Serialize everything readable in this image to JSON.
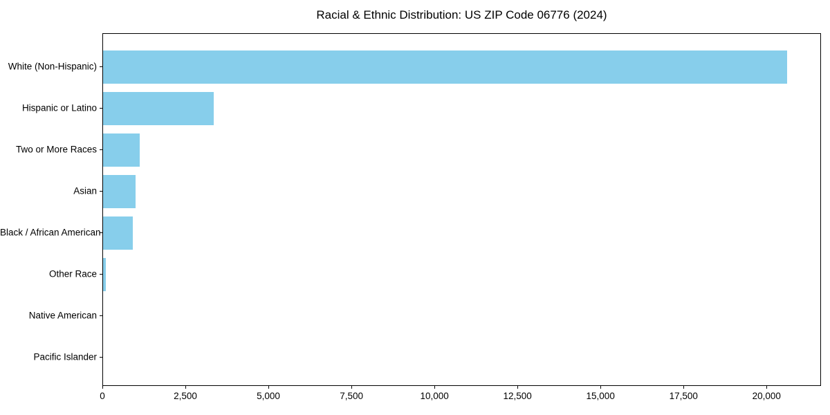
{
  "chart_data": {
    "type": "bar",
    "orientation": "horizontal",
    "title": "Racial & Ethnic Distribution: US ZIP Code 06776 (2024)",
    "categories": [
      "White (Non-Hispanic)",
      "Hispanic or Latino",
      "Two or More Races",
      "Asian",
      "Black / African American",
      "Other Race",
      "Native American",
      "Pacific Islander"
    ],
    "values": [
      20600,
      3330,
      1100,
      980,
      900,
      85,
      0,
      0
    ],
    "xlabel": "",
    "ylabel": "",
    "xlim": [
      0,
      21640
    ],
    "x_ticks": [
      0,
      2500,
      5000,
      7500,
      10000,
      12500,
      15000,
      17500,
      20000
    ],
    "x_tick_labels": [
      "0",
      "2,500",
      "5,000",
      "7,500",
      "10,000",
      "12,500",
      "15,000",
      "17,500",
      "20,000"
    ],
    "bar_color": "#87CEEB",
    "axis_color": "#000000",
    "background_color": "#ffffff",
    "grid": false,
    "legend": null
  }
}
